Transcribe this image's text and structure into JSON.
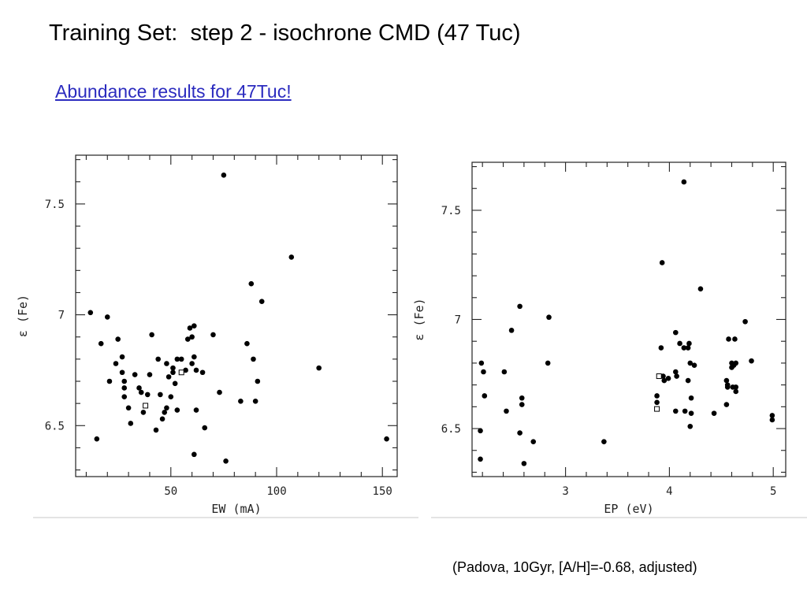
{
  "slide": {
    "title": "Training Set:  step 2 - isochrone CMD (47 Tuc)",
    "link": "Abundance results for 47Tuc!",
    "caption": "(Padova, 10Gyr, [A/H]=-0.68, adjusted)"
  },
  "colors": {
    "link": "#2b2bbf",
    "marker": "#000000"
  },
  "chart_data": [
    {
      "type": "scatter",
      "xlabel": "EW (mA)",
      "ylabel": "ε (Fe)",
      "xlim": [
        5,
        157
      ],
      "ylim": [
        6.27,
        7.72
      ],
      "xticks_major": [
        50,
        100,
        150
      ],
      "xticks_minor": [
        10,
        20,
        30,
        40,
        60,
        70,
        80,
        90,
        110,
        120,
        130,
        140
      ],
      "yticks_major": [
        6.5,
        7,
        7.5
      ],
      "yticks_minor": [
        6.3,
        6.4,
        6.6,
        6.7,
        6.8,
        6.9,
        7.1,
        7.2,
        7.3,
        7.4,
        7.6,
        7.7
      ],
      "grid": false,
      "series": [
        {
          "marker": "filled",
          "points": [
            [
              12,
              7.01
            ],
            [
              15,
              6.44
            ],
            [
              17,
              6.87
            ],
            [
              20,
              6.99
            ],
            [
              21,
              6.7
            ],
            [
              24,
              6.78
            ],
            [
              25,
              6.89
            ],
            [
              27,
              6.81
            ],
            [
              27,
              6.74
            ],
            [
              28,
              6.7
            ],
            [
              28,
              6.67
            ],
            [
              28,
              6.63
            ],
            [
              30,
              6.58
            ],
            [
              31,
              6.51
            ],
            [
              33,
              6.73
            ],
            [
              35,
              6.67
            ],
            [
              36,
              6.65
            ],
            [
              37,
              6.56
            ],
            [
              39,
              6.64
            ],
            [
              40,
              6.73
            ],
            [
              41,
              6.91
            ],
            [
              43,
              6.48
            ],
            [
              44,
              6.8
            ],
            [
              45,
              6.64
            ],
            [
              46,
              6.53
            ],
            [
              47,
              6.56
            ],
            [
              48,
              6.58
            ],
            [
              48,
              6.78
            ],
            [
              49,
              6.72
            ],
            [
              50,
              6.63
            ],
            [
              51,
              6.76
            ],
            [
              51,
              6.74
            ],
            [
              52,
              6.69
            ],
            [
              53,
              6.57
            ],
            [
              53,
              6.8
            ],
            [
              55,
              6.8
            ],
            [
              57,
              6.75
            ],
            [
              58,
              6.89
            ],
            [
              59,
              6.94
            ],
            [
              60,
              6.9
            ],
            [
              60,
              6.78
            ],
            [
              61,
              6.95
            ],
            [
              61,
              6.37
            ],
            [
              61,
              6.81
            ],
            [
              62,
              6.57
            ],
            [
              62,
              6.75
            ],
            [
              65,
              6.74
            ],
            [
              66,
              6.49
            ],
            [
              70,
              6.91
            ],
            [
              73,
              6.65
            ],
            [
              75,
              7.63
            ],
            [
              76,
              6.34
            ],
            [
              83,
              6.61
            ],
            [
              86,
              6.87
            ],
            [
              88,
              7.14
            ],
            [
              89,
              6.8
            ],
            [
              90,
              6.61
            ],
            [
              91,
              6.7
            ],
            [
              93,
              7.06
            ],
            [
              107,
              7.26
            ],
            [
              120,
              6.76
            ],
            [
              152,
              6.44
            ]
          ]
        },
        {
          "marker": "open",
          "points": [
            [
              38,
              6.59
            ],
            [
              55,
              6.74
            ]
          ]
        }
      ]
    },
    {
      "type": "scatter",
      "xlabel": "EP (eV)",
      "ylabel": "ε (Fe)",
      "xlim": [
        2.1,
        5.12
      ],
      "ylim": [
        6.28,
        7.72
      ],
      "xticks_major": [
        3,
        4,
        5
      ],
      "xticks_minor": [
        2.2,
        2.4,
        2.6,
        2.8,
        3.2,
        3.4,
        3.6,
        3.8,
        4.2,
        4.4,
        4.6,
        4.8
      ],
      "yticks_major": [
        6.5,
        7,
        7.5
      ],
      "yticks_minor": [
        6.3,
        6.4,
        6.6,
        6.7,
        6.8,
        6.9,
        7.1,
        7.2,
        7.3,
        7.4,
        7.6,
        7.7
      ],
      "grid": false,
      "series": [
        {
          "marker": "filled",
          "points": [
            [
              2.18,
              6.36
            ],
            [
              2.18,
              6.49
            ],
            [
              2.19,
              6.8
            ],
            [
              2.21,
              6.76
            ],
            [
              2.22,
              6.65
            ],
            [
              2.41,
              6.76
            ],
            [
              2.43,
              6.58
            ],
            [
              2.48,
              6.95
            ],
            [
              2.56,
              7.06
            ],
            [
              2.56,
              6.48
            ],
            [
              2.58,
              6.64
            ],
            [
              2.58,
              6.61
            ],
            [
              2.6,
              6.34
            ],
            [
              2.69,
              6.44
            ],
            [
              2.83,
              6.8
            ],
            [
              2.84,
              7.01
            ],
            [
              3.37,
              6.44
            ],
            [
              3.88,
              6.65
            ],
            [
              3.88,
              6.62
            ],
            [
              3.92,
              6.87
            ],
            [
              3.93,
              7.26
            ],
            [
              3.94,
              6.74
            ],
            [
              3.95,
              6.72
            ],
            [
              3.99,
              6.73
            ],
            [
              4.06,
              6.94
            ],
            [
              4.06,
              6.76
            ],
            [
              4.06,
              6.58
            ],
            [
              4.07,
              6.74
            ],
            [
              4.1,
              6.89
            ],
            [
              4.14,
              7.63
            ],
            [
              4.14,
              6.87
            ],
            [
              4.15,
              6.58
            ],
            [
              4.18,
              6.87
            ],
            [
              4.18,
              6.72
            ],
            [
              4.19,
              6.89
            ],
            [
              4.2,
              6.8
            ],
            [
              4.2,
              6.51
            ],
            [
              4.21,
              6.64
            ],
            [
              4.21,
              6.57
            ],
            [
              4.24,
              6.79
            ],
            [
              4.3,
              7.14
            ],
            [
              4.43,
              6.57
            ],
            [
              4.55,
              6.61
            ],
            [
              4.55,
              6.72
            ],
            [
              4.56,
              6.7
            ],
            [
              4.56,
              6.69
            ],
            [
              4.57,
              6.91
            ],
            [
              4.6,
              6.8
            ],
            [
              4.6,
              6.78
            ],
            [
              4.61,
              6.69
            ],
            [
              4.62,
              6.79
            ],
            [
              4.63,
              6.91
            ],
            [
              4.64,
              6.69
            ],
            [
              4.64,
              6.67
            ],
            [
              4.64,
              6.8
            ],
            [
              4.73,
              6.99
            ],
            [
              4.79,
              6.81
            ],
            [
              4.99,
              6.56
            ],
            [
              4.99,
              6.54
            ]
          ]
        },
        {
          "marker": "open",
          "points": [
            [
              3.88,
              6.59
            ],
            [
              3.9,
              6.74
            ]
          ]
        }
      ]
    }
  ]
}
